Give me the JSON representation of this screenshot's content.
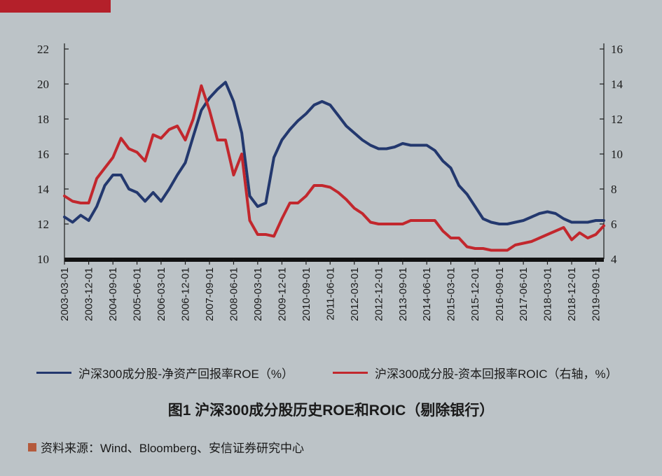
{
  "chart_data": {
    "type": "line",
    "title": "图1 沪深300成分股历史ROE和ROIC（剔除银行）",
    "xlim": [
      "2003-03-01",
      "2019-12-01"
    ],
    "x_ticks": [
      "2003-03-01",
      "2003-12-01",
      "2004-09-01",
      "2005-06-01",
      "2006-03-01",
      "2006-12-01",
      "2007-09-01",
      "2008-06-01",
      "2009-03-01",
      "2009-12-01",
      "2010-09-01",
      "2011-06-01",
      "2012-03-01",
      "2012-12-01",
      "2013-09-01",
      "2014-06-01",
      "2015-03-01",
      "2015-12-01",
      "2016-09-01",
      "2017-06-01",
      "2018-03-01",
      "2018-12-01",
      "2019-09-01"
    ],
    "y_left": {
      "ylim": [
        10,
        22
      ],
      "ticks": [
        10,
        12,
        14,
        16,
        18,
        20,
        22
      ]
    },
    "y_right": {
      "ylim": [
        4,
        16
      ],
      "ticks": [
        4,
        6,
        8,
        10,
        12,
        14,
        16
      ]
    },
    "series": [
      {
        "name": "沪深300成分股-净资产回报率ROE（%）",
        "axis": "left",
        "color": "#23386e",
        "x": [
          "2003-03-01",
          "2003-06-01",
          "2003-09-01",
          "2003-12-01",
          "2004-03-01",
          "2004-06-01",
          "2004-09-01",
          "2004-12-01",
          "2005-03-01",
          "2005-06-01",
          "2005-09-01",
          "2005-12-01",
          "2006-03-01",
          "2006-06-01",
          "2006-09-01",
          "2006-12-01",
          "2007-03-01",
          "2007-06-01",
          "2007-09-01",
          "2007-12-01",
          "2008-03-01",
          "2008-06-01",
          "2008-09-01",
          "2008-12-01",
          "2009-03-01",
          "2009-06-01",
          "2009-09-01",
          "2009-12-01",
          "2010-03-01",
          "2010-06-01",
          "2010-09-01",
          "2010-12-01",
          "2011-03-01",
          "2011-06-01",
          "2011-09-01",
          "2011-12-01",
          "2012-03-01",
          "2012-06-01",
          "2012-09-01",
          "2012-12-01",
          "2013-03-01",
          "2013-06-01",
          "2013-09-01",
          "2013-12-01",
          "2014-03-01",
          "2014-06-01",
          "2014-09-01",
          "2014-12-01",
          "2015-03-01",
          "2015-06-01",
          "2015-09-01",
          "2015-12-01",
          "2016-03-01",
          "2016-06-01",
          "2016-09-01",
          "2016-12-01",
          "2017-03-01",
          "2017-06-01",
          "2017-09-01",
          "2017-12-01",
          "2018-03-01",
          "2018-06-01",
          "2018-09-01",
          "2018-12-01",
          "2019-03-01",
          "2019-06-01",
          "2019-09-01",
          "2019-12-01"
        ],
        "values": [
          12.4,
          12.1,
          12.5,
          12.2,
          13.0,
          14.2,
          14.8,
          14.8,
          14.0,
          13.8,
          13.3,
          13.8,
          13.3,
          14.0,
          14.8,
          15.5,
          17.0,
          18.5,
          19.2,
          19.7,
          20.1,
          19.0,
          17.2,
          13.6,
          13.0,
          13.2,
          15.8,
          16.8,
          17.4,
          17.9,
          18.3,
          18.8,
          19.0,
          18.8,
          18.2,
          17.6,
          17.2,
          16.8,
          16.5,
          16.3,
          16.3,
          16.4,
          16.6,
          16.5,
          16.5,
          16.5,
          16.2,
          15.6,
          15.2,
          14.2,
          13.7,
          13.0,
          12.3,
          12.1,
          12.0,
          12.0,
          12.1,
          12.2,
          12.4,
          12.6,
          12.7,
          12.6,
          12.3,
          12.1,
          12.1,
          12.1,
          12.2,
          12.2
        ]
      },
      {
        "name": "沪深300成分股-资本回报率ROIC（右轴，%）",
        "axis": "right",
        "color": "#c2272d",
        "x": [
          "2003-03-01",
          "2003-06-01",
          "2003-09-01",
          "2003-12-01",
          "2004-03-01",
          "2004-06-01",
          "2004-09-01",
          "2004-12-01",
          "2005-03-01",
          "2005-06-01",
          "2005-09-01",
          "2005-12-01",
          "2006-03-01",
          "2006-06-01",
          "2006-09-01",
          "2006-12-01",
          "2007-03-01",
          "2007-06-01",
          "2007-09-01",
          "2007-12-01",
          "2008-03-01",
          "2008-06-01",
          "2008-09-01",
          "2008-12-01",
          "2009-03-01",
          "2009-06-01",
          "2009-09-01",
          "2009-12-01",
          "2010-03-01",
          "2010-06-01",
          "2010-09-01",
          "2010-12-01",
          "2011-03-01",
          "2011-06-01",
          "2011-09-01",
          "2011-12-01",
          "2012-03-01",
          "2012-06-01",
          "2012-09-01",
          "2012-12-01",
          "2013-03-01",
          "2013-06-01",
          "2013-09-01",
          "2013-12-01",
          "2014-03-01",
          "2014-06-01",
          "2014-09-01",
          "2014-12-01",
          "2015-03-01",
          "2015-06-01",
          "2015-09-01",
          "2015-12-01",
          "2016-03-01",
          "2016-06-01",
          "2016-09-01",
          "2016-12-01",
          "2017-03-01",
          "2017-06-01",
          "2017-09-01",
          "2017-12-01",
          "2018-03-01",
          "2018-06-01",
          "2018-09-01",
          "2018-12-01",
          "2019-03-01",
          "2019-06-01",
          "2019-09-01",
          "2019-12-01"
        ],
        "values": [
          7.6,
          7.3,
          7.2,
          7.2,
          8.6,
          9.2,
          9.8,
          10.9,
          10.3,
          10.1,
          9.6,
          11.1,
          10.9,
          11.4,
          11.6,
          10.8,
          12.0,
          13.9,
          12.5,
          10.8,
          10.8,
          8.8,
          10.0,
          6.2,
          5.4,
          5.4,
          5.3,
          6.3,
          7.2,
          7.2,
          7.6,
          8.2,
          8.2,
          8.1,
          7.8,
          7.4,
          6.9,
          6.6,
          6.1,
          6.0,
          6.0,
          6.0,
          6.0,
          6.2,
          6.2,
          6.2,
          6.2,
          5.6,
          5.2,
          5.2,
          4.7,
          4.6,
          4.6,
          4.5,
          4.5,
          4.5,
          4.8,
          4.9,
          5.0,
          5.2,
          5.4,
          5.6,
          5.8,
          5.1,
          5.5,
          5.2,
          5.4,
          5.9
        ]
      }
    ]
  },
  "legend": [
    {
      "label": "沪深300成分股-净资产回报率ROE（%）",
      "color": "#23386e"
    },
    {
      "label": "沪深300成分股-资本回报率ROIC（右轴，%）",
      "color": "#c2272d"
    }
  ],
  "figure_title": "图1 沪深300成分股历史ROE和ROIC（剔除银行）",
  "source": "资料来源：Wind、Bloomberg、安信证券研究中心",
  "colors": {
    "background": "#bcc3c7",
    "accent": "#b4202a",
    "source_marker": "#b45a3c"
  }
}
